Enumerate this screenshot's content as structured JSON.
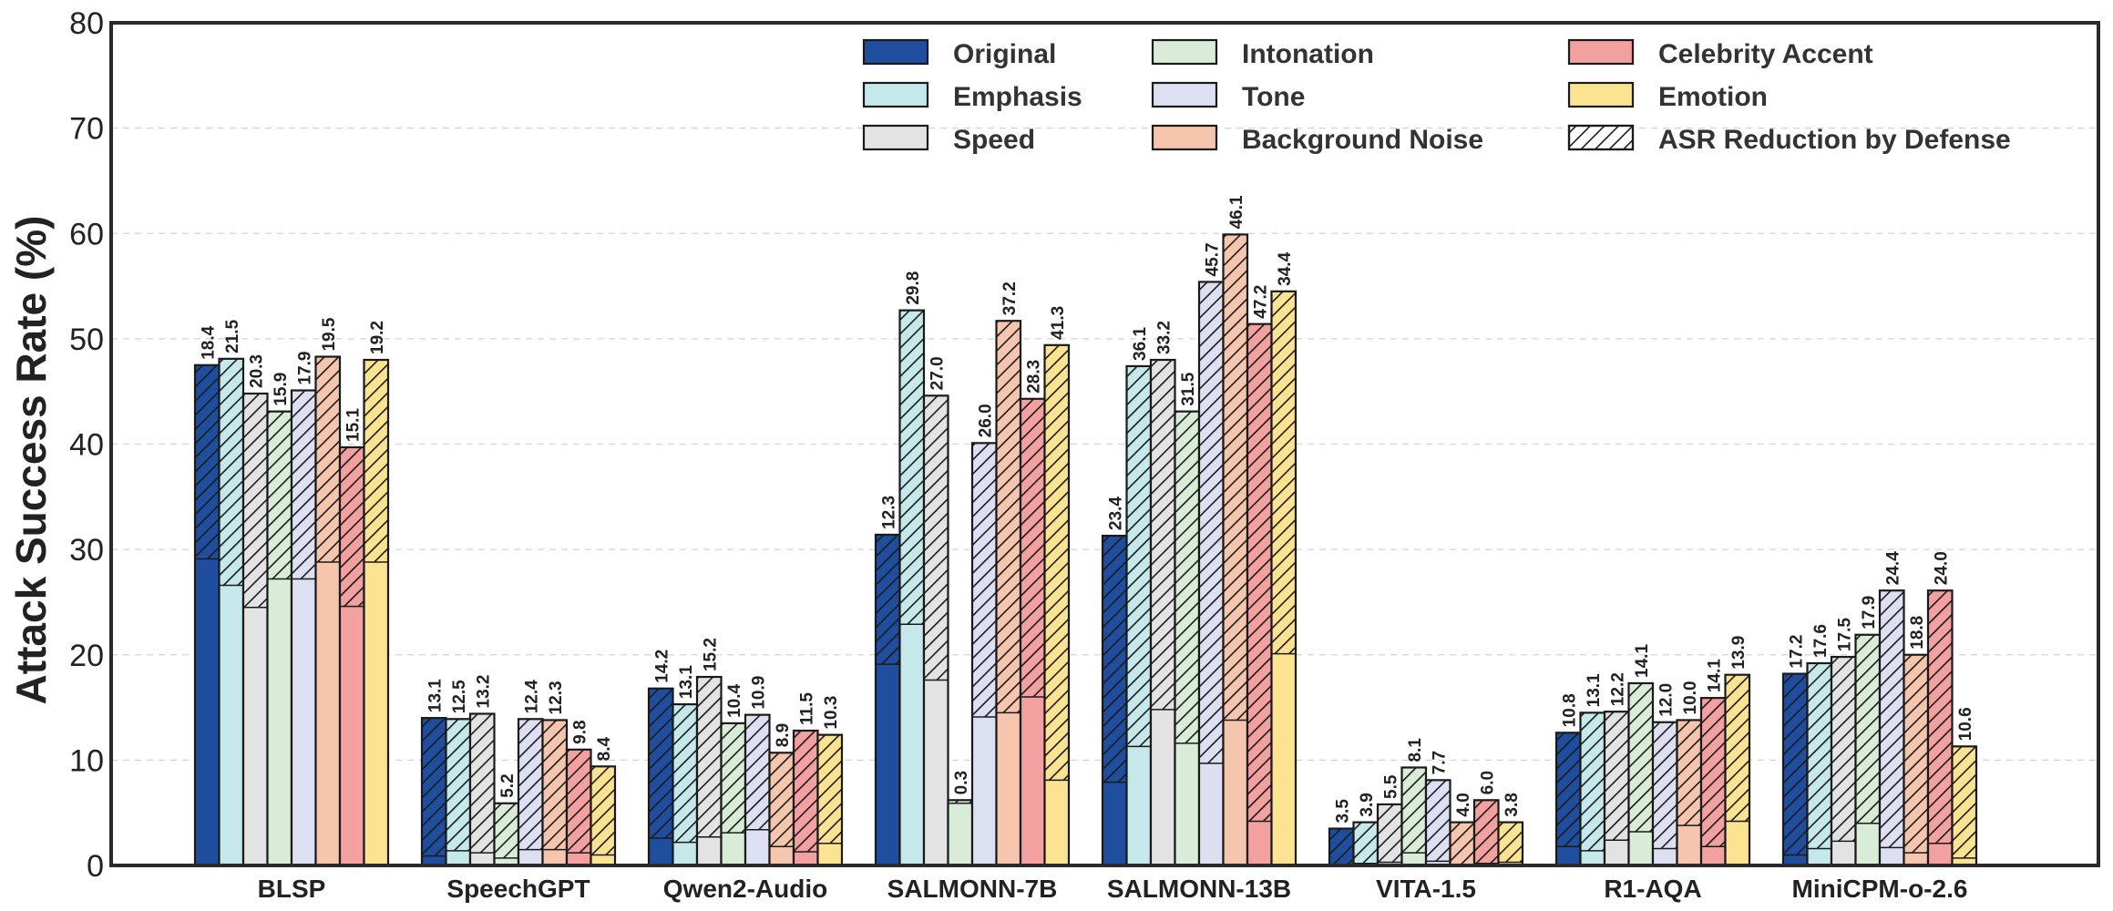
{
  "chart_data": {
    "type": "bar",
    "ylabel": "Attack Success Rate (%)",
    "xlabel": "",
    "ylim": [
      0,
      80
    ],
    "yticks": [
      0,
      10,
      20,
      30,
      40,
      50,
      60,
      70,
      80
    ],
    "grid": true,
    "legend_position": "top-right",
    "categories": [
      "BLSP",
      "SpeechGPT",
      "Qwen2-Audio",
      "SALMONN-7B",
      "SALMONN-13B",
      "VITA-1.5",
      "R1-AQA",
      "MiniCPM-o-2.6"
    ],
    "hatch_legend_label": "ASR Reduction by Defense",
    "series": [
      {
        "name": "Original",
        "color": "#1f4e9e",
        "total": [
          47.5,
          14.0,
          16.8,
          31.4,
          31.3,
          3.5,
          12.6,
          18.2
        ],
        "reduction": [
          18.4,
          13.1,
          14.2,
          12.3,
          23.4,
          3.5,
          10.8,
          17.2
        ]
      },
      {
        "name": "Emphasis",
        "color": "#c5e8ea",
        "total": [
          48.1,
          13.9,
          15.3,
          52.7,
          47.4,
          4.1,
          14.5,
          19.2
        ],
        "reduction": [
          21.5,
          12.5,
          13.1,
          29.8,
          36.1,
          3.9,
          13.1,
          17.6
        ]
      },
      {
        "name": "Speed",
        "color": "#e3e3e3",
        "total": [
          44.8,
          14.4,
          17.9,
          44.6,
          48.0,
          5.8,
          14.6,
          19.8
        ],
        "reduction": [
          20.3,
          13.2,
          15.2,
          27.0,
          33.2,
          5.5,
          12.2,
          17.5
        ]
      },
      {
        "name": "Intonation",
        "color": "#d9ecd7",
        "total": [
          43.1,
          5.9,
          13.5,
          6.2,
          43.1,
          9.3,
          17.3,
          21.9
        ],
        "reduction": [
          15.9,
          5.2,
          10.4,
          0.3,
          31.5,
          8.1,
          14.1,
          17.9
        ]
      },
      {
        "name": "Tone",
        "color": "#dde0f2",
        "total": [
          45.1,
          13.9,
          14.3,
          40.1,
          55.4,
          8.1,
          13.6,
          26.1
        ],
        "reduction": [
          17.9,
          12.4,
          10.9,
          26.0,
          45.7,
          7.7,
          12.0,
          24.4
        ]
      },
      {
        "name": "Background Noise",
        "color": "#f5c6ad",
        "total": [
          48.3,
          13.8,
          10.7,
          51.7,
          59.9,
          4.1,
          13.8,
          20.0
        ],
        "reduction": [
          19.5,
          12.3,
          8.9,
          37.2,
          46.1,
          4.0,
          10.0,
          18.8
        ]
      },
      {
        "name": "Celebrity Accent",
        "color": "#f2a0a0",
        "total": [
          39.7,
          11.0,
          12.8,
          44.3,
          51.4,
          6.2,
          15.9,
          26.1
        ],
        "reduction": [
          15.1,
          9.8,
          11.5,
          28.3,
          47.2,
          6.0,
          14.1,
          24.0
        ]
      },
      {
        "name": "Emotion",
        "color": "#fbe391",
        "total": [
          48.0,
          9.4,
          12.4,
          49.4,
          54.5,
          4.1,
          18.1,
          11.3
        ],
        "reduction": [
          19.2,
          8.4,
          10.3,
          41.3,
          34.4,
          3.8,
          13.9,
          10.6
        ]
      }
    ]
  }
}
